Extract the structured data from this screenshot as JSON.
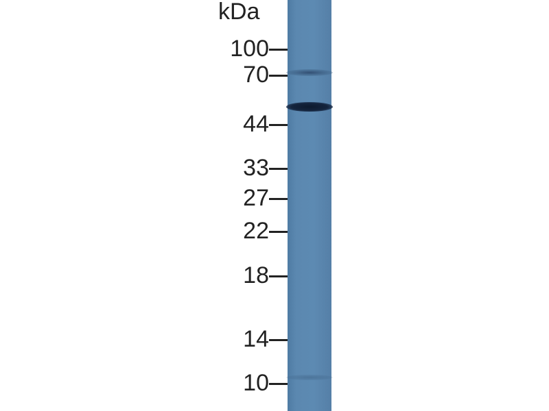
{
  "blot": {
    "unit_label": "kDa",
    "lane_color": "#5a87af",
    "markers": [
      {
        "label": "100",
        "kda": 100
      },
      {
        "label": "70",
        "kda": 70
      },
      {
        "label": "44",
        "kda": 44
      },
      {
        "label": "33",
        "kda": 33
      },
      {
        "label": "27",
        "kda": 27
      },
      {
        "label": "22",
        "kda": 22
      },
      {
        "label": "18",
        "kda": 18
      },
      {
        "label": "14",
        "kda": 14
      },
      {
        "label": "10",
        "kda": 10
      }
    ],
    "bands": [
      {
        "kda": 52,
        "intensity": "strong"
      },
      {
        "kda": 73,
        "intensity": "faint"
      },
      {
        "kda": 10.5,
        "intensity": "very faint"
      }
    ]
  }
}
